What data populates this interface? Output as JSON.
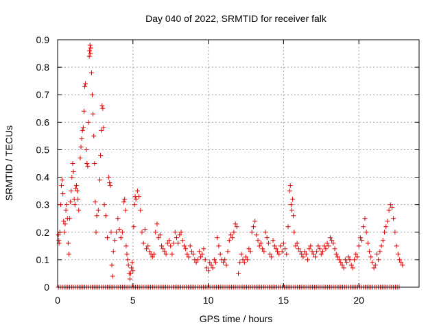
{
  "chart_data": {
    "type": "scatter",
    "title": "Day 040 of 2022, SRMTID for receiver falk",
    "xlabel": "GPS time / hours",
    "ylabel": "SRMTID / TECUs",
    "xlim": [
      0,
      24
    ],
    "ylim": [
      0,
      0.9
    ],
    "xticks": [
      0,
      5,
      10,
      15,
      20
    ],
    "yticks": [
      0,
      0.1,
      0.2,
      0.3,
      0.4,
      0.5,
      0.6,
      0.7,
      0.8,
      0.9
    ],
    "xtick_labels": [
      "0",
      "5",
      "10",
      "15",
      "20"
    ],
    "ytick_labels": [
      "0",
      "0.1",
      "0.2",
      "0.3",
      "0.4",
      "0.5",
      "0.6",
      "0.7",
      "0.8",
      "0.9"
    ],
    "grid": true,
    "marker": "plus",
    "color": "#dd0000",
    "series": [
      {
        "name": "SRMTID",
        "points": [
          [
            0.05,
            0.19
          ],
          [
            0.08,
            0.17
          ],
          [
            0.1,
            0.16
          ],
          [
            0.15,
            0.2
          ],
          [
            0.2,
            0.3
          ],
          [
            0.25,
            0.37
          ],
          [
            0.3,
            0.39
          ],
          [
            0.35,
            0.34
          ],
          [
            0.4,
            0.24
          ],
          [
            0.45,
            0.2
          ],
          [
            0.5,
            0.23
          ],
          [
            0.55,
            0.28
          ],
          [
            0.6,
            0.3
          ],
          [
            0.65,
            0.25
          ],
          [
            0.7,
            0.16
          ],
          [
            0.75,
            0.12
          ],
          [
            0.8,
            0.25
          ],
          [
            0.85,
            0.31
          ],
          [
            0.9,
            0.35
          ],
          [
            0.95,
            0.4
          ],
          [
            1.0,
            0.45
          ],
          [
            1.05,
            0.42
          ],
          [
            1.1,
            0.32
          ],
          [
            1.15,
            0.3
          ],
          [
            1.2,
            0.36
          ],
          [
            1.25,
            0.37
          ],
          [
            1.3,
            0.35
          ],
          [
            1.35,
            0.32
          ],
          [
            1.4,
            0.28
          ],
          [
            1.5,
            0.47
          ],
          [
            1.55,
            0.51
          ],
          [
            1.6,
            0.54
          ],
          [
            1.65,
            0.57
          ],
          [
            1.7,
            0.58
          ],
          [
            1.75,
            0.64
          ],
          [
            1.8,
            0.73
          ],
          [
            1.85,
            0.74
          ],
          [
            1.9,
            0.5
          ],
          [
            1.95,
            0.45
          ],
          [
            2.0,
            0.44
          ],
          [
            2.05,
            0.6
          ],
          [
            2.1,
            0.84
          ],
          [
            2.12,
            0.86
          ],
          [
            2.15,
            0.88
          ],
          [
            2.18,
            0.85
          ],
          [
            2.2,
            0.87
          ],
          [
            2.25,
            0.78
          ],
          [
            2.3,
            0.7
          ],
          [
            2.35,
            0.63
          ],
          [
            2.4,
            0.55
          ],
          [
            2.45,
            0.45
          ],
          [
            2.5,
            0.31
          ],
          [
            2.55,
            0.2
          ],
          [
            2.6,
            0.26
          ],
          [
            2.7,
            0.28
          ],
          [
            2.8,
            0.39
          ],
          [
            2.85,
            0.48
          ],
          [
            2.9,
            0.57
          ],
          [
            2.95,
            0.66
          ],
          [
            3.0,
            0.65
          ],
          [
            3.05,
            0.58
          ],
          [
            3.1,
            0.3
          ],
          [
            3.2,
            0.26
          ],
          [
            3.3,
            0.18
          ],
          [
            3.4,
            0.4
          ],
          [
            3.45,
            0.38
          ],
          [
            3.5,
            0.37
          ],
          [
            3.55,
            0.2
          ],
          [
            3.6,
            0.08
          ],
          [
            3.65,
            0.04
          ],
          [
            3.7,
            0.13
          ],
          [
            3.8,
            0.17
          ],
          [
            3.9,
            0.2
          ],
          [
            4.0,
            0.25
          ],
          [
            4.1,
            0.21
          ],
          [
            4.2,
            0.18
          ],
          [
            4.3,
            0.2
          ],
          [
            4.4,
            0.31
          ],
          [
            4.45,
            0.32
          ],
          [
            4.5,
            0.28
          ],
          [
            4.55,
            0.15
          ],
          [
            4.6,
            0.12
          ],
          [
            4.65,
            0.1
          ],
          [
            4.7,
            0.08
          ],
          [
            4.75,
            0.05
          ],
          [
            4.8,
            0.03
          ],
          [
            4.85,
            0.05
          ],
          [
            4.9,
            0.07
          ],
          [
            4.95,
            0.09
          ],
          [
            5.0,
            0.06
          ],
          [
            5.05,
            0.22
          ],
          [
            5.1,
            0.3
          ],
          [
            5.15,
            0.33
          ],
          [
            5.2,
            0.32
          ],
          [
            5.3,
            0.35
          ],
          [
            5.4,
            0.33
          ],
          [
            5.5,
            0.28
          ],
          [
            5.6,
            0.2
          ],
          [
            5.7,
            0.16
          ],
          [
            5.8,
            0.21
          ],
          [
            5.9,
            0.14
          ],
          [
            6.0,
            0.15
          ],
          [
            6.1,
            0.13
          ],
          [
            6.2,
            0.12
          ],
          [
            6.3,
            0.11
          ],
          [
            6.4,
            0.12
          ],
          [
            6.5,
            0.2
          ],
          [
            6.6,
            0.23
          ],
          [
            6.7,
            0.18
          ],
          [
            6.8,
            0.19
          ],
          [
            6.9,
            0.15
          ],
          [
            7.0,
            0.14
          ],
          [
            7.1,
            0.13
          ],
          [
            7.2,
            0.12
          ],
          [
            7.3,
            0.16
          ],
          [
            7.4,
            0.17
          ],
          [
            7.5,
            0.15
          ],
          [
            7.6,
            0.12
          ],
          [
            7.7,
            0.16
          ],
          [
            7.8,
            0.2
          ],
          [
            7.9,
            0.18
          ],
          [
            8.0,
            0.16
          ],
          [
            8.1,
            0.19
          ],
          [
            8.2,
            0.2
          ],
          [
            8.3,
            0.17
          ],
          [
            8.4,
            0.15
          ],
          [
            8.5,
            0.14
          ],
          [
            8.6,
            0.12
          ],
          [
            8.7,
            0.11
          ],
          [
            8.8,
            0.15
          ],
          [
            8.9,
            0.13
          ],
          [
            9.0,
            0.12
          ],
          [
            9.1,
            0.1
          ],
          [
            9.2,
            0.09
          ],
          [
            9.3,
            0.1
          ],
          [
            9.4,
            0.13
          ],
          [
            9.5,
            0.11
          ],
          [
            9.6,
            0.12
          ],
          [
            9.7,
            0.14
          ],
          [
            9.8,
            0.1
          ],
          [
            9.9,
            0.07
          ],
          [
            10.0,
            0.06
          ],
          [
            10.1,
            0.09
          ],
          [
            10.2,
            0.08
          ],
          [
            10.3,
            0.07
          ],
          [
            10.4,
            0.1
          ],
          [
            10.5,
            0.09
          ],
          [
            10.6,
            0.18
          ],
          [
            10.7,
            0.15
          ],
          [
            10.8,
            0.12
          ],
          [
            10.9,
            0.1
          ],
          [
            11.0,
            0.09
          ],
          [
            11.1,
            0.1
          ],
          [
            11.2,
            0.08
          ],
          [
            11.3,
            0.13
          ],
          [
            11.4,
            0.17
          ],
          [
            11.5,
            0.19
          ],
          [
            11.6,
            0.18
          ],
          [
            11.7,
            0.2
          ],
          [
            11.8,
            0.23
          ],
          [
            11.9,
            0.22
          ],
          [
            12.0,
            0.05
          ],
          [
            12.1,
            0.09
          ],
          [
            12.2,
            0.12
          ],
          [
            12.3,
            0.1
          ],
          [
            12.4,
            0.09
          ],
          [
            12.5,
            0.11
          ],
          [
            12.6,
            0.1
          ],
          [
            12.7,
            0.14
          ],
          [
            12.8,
            0.13
          ],
          [
            12.9,
            0.2
          ],
          [
            13.0,
            0.22
          ],
          [
            13.1,
            0.24
          ],
          [
            13.2,
            0.19
          ],
          [
            13.3,
            0.17
          ],
          [
            13.4,
            0.15
          ],
          [
            13.5,
            0.16
          ],
          [
            13.6,
            0.14
          ],
          [
            13.7,
            0.13
          ],
          [
            13.8,
            0.2
          ],
          [
            13.9,
            0.18
          ],
          [
            14.0,
            0.16
          ],
          [
            14.1,
            0.12
          ],
          [
            14.2,
            0.11
          ],
          [
            14.3,
            0.17
          ],
          [
            14.4,
            0.15
          ],
          [
            14.5,
            0.14
          ],
          [
            14.6,
            0.13
          ],
          [
            14.7,
            0.12
          ],
          [
            14.8,
            0.15
          ],
          [
            14.9,
            0.13
          ],
          [
            15.0,
            0.16
          ],
          [
            15.1,
            0.14
          ],
          [
            15.2,
            0.12
          ],
          [
            15.3,
            0.22
          ],
          [
            15.4,
            0.35
          ],
          [
            15.45,
            0.37
          ],
          [
            15.5,
            0.3
          ],
          [
            15.55,
            0.28
          ],
          [
            15.6,
            0.32
          ],
          [
            15.65,
            0.26
          ],
          [
            15.7,
            0.2
          ],
          [
            15.8,
            0.15
          ],
          [
            15.9,
            0.16
          ],
          [
            16.0,
            0.14
          ],
          [
            16.1,
            0.13
          ],
          [
            16.2,
            0.12
          ],
          [
            16.3,
            0.11
          ],
          [
            16.4,
            0.13
          ],
          [
            16.5,
            0.12
          ],
          [
            16.6,
            0.1
          ],
          [
            16.7,
            0.14
          ],
          [
            16.8,
            0.15
          ],
          [
            16.9,
            0.13
          ],
          [
            17.0,
            0.12
          ],
          [
            17.1,
            0.11
          ],
          [
            17.2,
            0.13
          ],
          [
            17.3,
            0.15
          ],
          [
            17.4,
            0.14
          ],
          [
            17.5,
            0.12
          ],
          [
            17.6,
            0.13
          ],
          [
            17.7,
            0.15
          ],
          [
            17.8,
            0.14
          ],
          [
            17.9,
            0.16
          ],
          [
            18.0,
            0.15
          ],
          [
            18.1,
            0.18
          ],
          [
            18.2,
            0.17
          ],
          [
            18.3,
            0.16
          ],
          [
            18.4,
            0.14
          ],
          [
            18.5,
            0.12
          ],
          [
            18.6,
            0.11
          ],
          [
            18.7,
            0.1
          ],
          [
            18.8,
            0.09
          ],
          [
            18.9,
            0.08
          ],
          [
            19.0,
            0.07
          ],
          [
            19.1,
            0.1
          ],
          [
            19.2,
            0.09
          ],
          [
            19.3,
            0.11
          ],
          [
            19.4,
            0.1
          ],
          [
            19.5,
            0.08
          ],
          [
            19.6,
            0.07
          ],
          [
            19.7,
            0.1
          ],
          [
            19.8,
            0.12
          ],
          [
            19.9,
            0.11
          ],
          [
            20.0,
            0.15
          ],
          [
            20.1,
            0.18
          ],
          [
            20.2,
            0.17
          ],
          [
            20.3,
            0.22
          ],
          [
            20.4,
            0.25
          ],
          [
            20.5,
            0.2
          ],
          [
            20.6,
            0.16
          ],
          [
            20.7,
            0.13
          ],
          [
            20.8,
            0.11
          ],
          [
            20.9,
            0.09
          ],
          [
            21.0,
            0.07
          ],
          [
            21.1,
            0.08
          ],
          [
            21.2,
            0.12
          ],
          [
            21.3,
            0.1
          ],
          [
            21.4,
            0.13
          ],
          [
            21.5,
            0.15
          ],
          [
            21.6,
            0.17
          ],
          [
            21.7,
            0.2
          ],
          [
            21.8,
            0.22
          ],
          [
            21.9,
            0.24
          ],
          [
            22.0,
            0.28
          ],
          [
            22.1,
            0.3
          ],
          [
            22.2,
            0.29
          ],
          [
            22.3,
            0.25
          ],
          [
            22.4,
            0.2
          ],
          [
            22.5,
            0.15
          ],
          [
            22.6,
            0.12
          ],
          [
            22.7,
            0.1
          ],
          [
            22.8,
            0.09
          ],
          [
            22.9,
            0.08
          ]
        ]
      },
      {
        "name": "Zero values",
        "x_range": [
          0.05,
          22.7
        ],
        "x_step": 0.125,
        "y": 0
      }
    ]
  }
}
